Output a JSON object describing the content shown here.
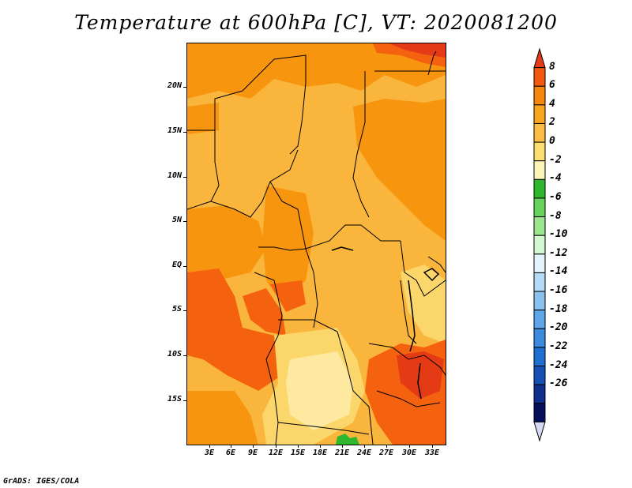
{
  "title": "Temperature at 600hPa [C], VT: 2020081200",
  "credit": "GrADS: IGES/COLA",
  "y_ticks": [
    "20N",
    "15N",
    "10N",
    "5N",
    "EQ",
    "5S",
    "10S",
    "15S"
  ],
  "x_ticks": [
    "3E",
    "6E",
    "9E",
    "12E",
    "15E",
    "18E",
    "21E",
    "24E",
    "27E",
    "30E",
    "33E"
  ],
  "colorbar": {
    "labels": [
      "8",
      "6",
      "4",
      "2",
      "0",
      "-2",
      "-4",
      "-6",
      "-8",
      "-10",
      "-12",
      "-14",
      "-16",
      "-18",
      "-20",
      "-22",
      "-24",
      "-26"
    ],
    "colors": [
      "#e53a16",
      "#f5580f",
      "#f7860e",
      "#faa521",
      "#fbbd45",
      "#fbdd70",
      "#fdf4b8",
      "#2fb82e",
      "#66d45c",
      "#9be68f",
      "#d3f7d1",
      "#e3f4fc",
      "#b4dcf7",
      "#8ac2ef",
      "#5ea6ea",
      "#3a8ae0",
      "#1d6fd1",
      "#1650b4",
      "#0e2f8e",
      "#050f5a",
      "#d7d9f4"
    ]
  },
  "fields": {
    "colors": {
      "base": "#f9b53c",
      "warm": "#f7950f",
      "hot": "#f5620f",
      "hottest": "#e53a16",
      "cool": "#fbd66a",
      "coolest": "#fde9a0",
      "green": "#2fb82e",
      "border": "#000000"
    }
  }
}
